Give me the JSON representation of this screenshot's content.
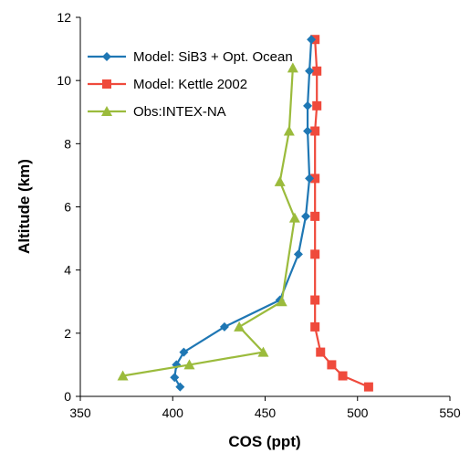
{
  "chart_data": {
    "type": "line",
    "title": "",
    "xlabel": "COS (ppt)",
    "ylabel": "Altitude (km)",
    "xlim": [
      350,
      550
    ],
    "ylim": [
      0,
      12
    ],
    "xticks": [
      350,
      400,
      450,
      500,
      550
    ],
    "xtick_labels": [
      "350",
      "400",
      "450",
      "500",
      "550"
    ],
    "yticks": [
      0,
      2,
      4,
      6,
      8,
      10,
      12
    ],
    "ytick_labels": [
      "0",
      "2",
      "4",
      "6",
      "8",
      "10",
      "12"
    ],
    "grid": false,
    "legend_position": "top-left",
    "series": [
      {
        "name": "Model: SiB3 + Opt. Ocean",
        "color": "#1f77b4",
        "marker": "diamond",
        "x": [
          404,
          401,
          402,
          406,
          428,
          458,
          468,
          472,
          474,
          473,
          473,
          474,
          475
        ],
        "y": [
          0.3,
          0.6,
          1.0,
          1.4,
          2.2,
          3.05,
          4.5,
          5.7,
          6.9,
          8.4,
          9.2,
          10.3,
          11.3
        ]
      },
      {
        "name": "Model: Kettle 2002",
        "color": "#ef4a3c",
        "marker": "square",
        "x": [
          506,
          492,
          486,
          480,
          477,
          477,
          477,
          477,
          477,
          477,
          478,
          478,
          477
        ],
        "y": [
          0.3,
          0.65,
          1.0,
          1.4,
          2.2,
          3.05,
          4.5,
          5.7,
          6.9,
          8.4,
          9.2,
          10.3,
          11.3
        ]
      },
      {
        "name": "Obs:INTEX-NA",
        "color": "#9bbb3c",
        "marker": "triangle",
        "x": [
          373,
          409,
          449,
          436,
          459,
          466,
          458,
          463,
          465
        ],
        "y": [
          0.65,
          1.0,
          1.4,
          2.2,
          3.0,
          5.65,
          6.8,
          8.4,
          10.4
        ]
      }
    ]
  }
}
